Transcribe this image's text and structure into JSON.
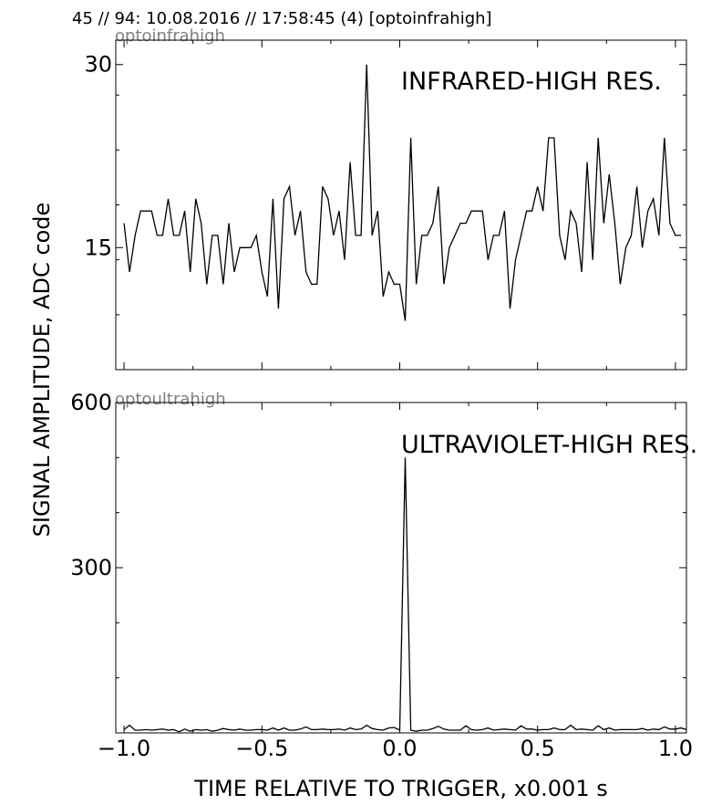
{
  "header": {
    "text": "45 // 94:   10.08.2016 // 17:58:45 (4)  [optoinfrahigh]"
  },
  "chart_data": [
    {
      "type": "line",
      "name": "optoinfrahigh",
      "title": "INFRARED-HIGH RES.",
      "x_start": -1.0,
      "x_step": 0.02,
      "ylim": [
        5,
        32
      ],
      "y_ticks": [
        30,
        15
      ],
      "values": [
        17,
        13,
        16,
        18,
        18,
        18,
        16,
        16,
        19,
        16,
        16,
        18,
        13,
        19,
        17,
        12,
        16,
        16,
        12,
        17,
        13,
        15,
        15,
        15,
        16,
        13,
        11,
        19,
        10,
        19,
        20,
        16,
        18,
        13,
        12,
        12,
        20,
        19,
        16,
        18,
        14,
        22,
        16,
        16,
        30,
        16,
        18,
        11,
        13,
        12,
        12,
        9,
        24,
        12,
        16,
        16,
        17,
        20,
        12,
        15,
        16,
        17,
        17,
        18,
        18,
        18,
        14,
        16,
        16,
        18,
        10,
        14,
        16,
        18,
        18,
        20,
        18,
        24,
        24,
        16,
        14,
        18,
        17,
        13,
        22,
        14,
        24,
        17,
        21,
        17,
        12,
        15,
        16,
        20,
        15,
        18,
        19,
        16,
        24,
        17,
        16,
        16
      ]
    },
    {
      "type": "line",
      "name": "optoultrahigh",
      "title": "ULTRAVIOLET-HIGH RES.",
      "x_start": -1.0,
      "x_step": 0.02,
      "ylim": [
        0,
        600
      ],
      "y_ticks": [
        600,
        300
      ],
      "values": [
        6,
        14,
        5,
        5,
        6,
        5,
        6,
        7,
        5,
        6,
        2,
        7,
        3,
        6,
        5,
        6,
        3,
        5,
        8,
        6,
        5,
        7,
        5,
        5,
        6,
        6,
        5,
        9,
        5,
        9,
        5,
        5,
        7,
        11,
        6,
        6,
        7,
        6,
        6,
        7,
        5,
        9,
        6,
        7,
        14,
        8,
        6,
        5,
        9,
        10,
        5,
        500,
        5,
        3,
        5,
        5,
        8,
        12,
        7,
        5,
        5,
        5,
        13,
        6,
        5,
        6,
        9,
        5,
        6,
        7,
        6,
        5,
        13,
        7,
        7,
        5,
        6,
        6,
        9,
        6,
        6,
        14,
        6,
        7,
        6,
        5,
        13,
        6,
        9,
        5,
        6,
        6,
        6,
        6,
        8,
        5,
        7,
        6,
        11,
        7,
        7,
        9,
        6
      ]
    }
  ],
  "axes": {
    "ylabel": "SIGNAL AMPLITUDE,  ADC code",
    "xlabel": "TIME RELATIVE TO TRIGGER,   x0.001 s",
    "xlim": [
      -1.03,
      1.04
    ],
    "x_ticks": [
      -1.0,
      -0.5,
      0.0,
      0.5,
      1.0
    ],
    "x_tick_labels": [
      "−1.0",
      "−0.5",
      "0.0",
      "0.5",
      "1.0"
    ]
  }
}
